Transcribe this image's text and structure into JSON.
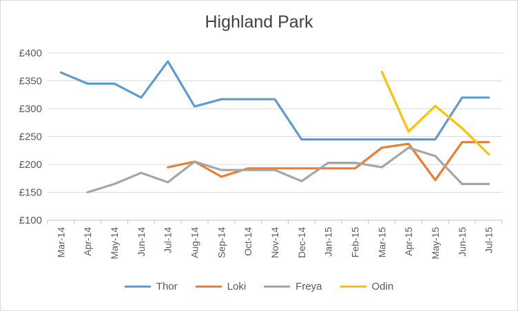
{
  "chart_data": {
    "type": "line",
    "title": "Highland Park",
    "categories": [
      "Mar-14",
      "Apr-14",
      "May-14",
      "Jun-14",
      "Jul-14",
      "Aug-14",
      "Sep-14",
      "Oct-14",
      "Nov-14",
      "Dec-14",
      "Jan-15",
      "Feb-15",
      "Mar-15",
      "Apr-15",
      "May-15",
      "Jun-15",
      "Jul-15"
    ],
    "ylim": [
      100,
      400
    ],
    "yticks": [
      "£100",
      "£150",
      "£200",
      "£250",
      "£300",
      "£350",
      "£400"
    ],
    "grid": true,
    "legend_position": "bottom",
    "series": [
      {
        "name": "Thor",
        "color": "#5b9bd5",
        "values": [
          365,
          345,
          345,
          320,
          385,
          304,
          317,
          317,
          317,
          245,
          245,
          245,
          245,
          245,
          245,
          320,
          320
        ]
      },
      {
        "name": "Loki",
        "color": "#ed7d31",
        "values": [
          null,
          null,
          null,
          null,
          195,
          205,
          178,
          193,
          193,
          193,
          193,
          193,
          230,
          237,
          172,
          240,
          240
        ]
      },
      {
        "name": "Freya",
        "color": "#a5a5a5",
        "values": [
          null,
          150,
          165,
          185,
          168,
          205,
          190,
          190,
          190,
          170,
          203,
          203,
          195,
          230,
          215,
          165,
          165
        ]
      },
      {
        "name": "Odin",
        "color": "#ffc000",
        "values": [
          null,
          null,
          null,
          null,
          null,
          null,
          null,
          null,
          null,
          null,
          null,
          null,
          366,
          259,
          305,
          265,
          218
        ]
      }
    ]
  }
}
